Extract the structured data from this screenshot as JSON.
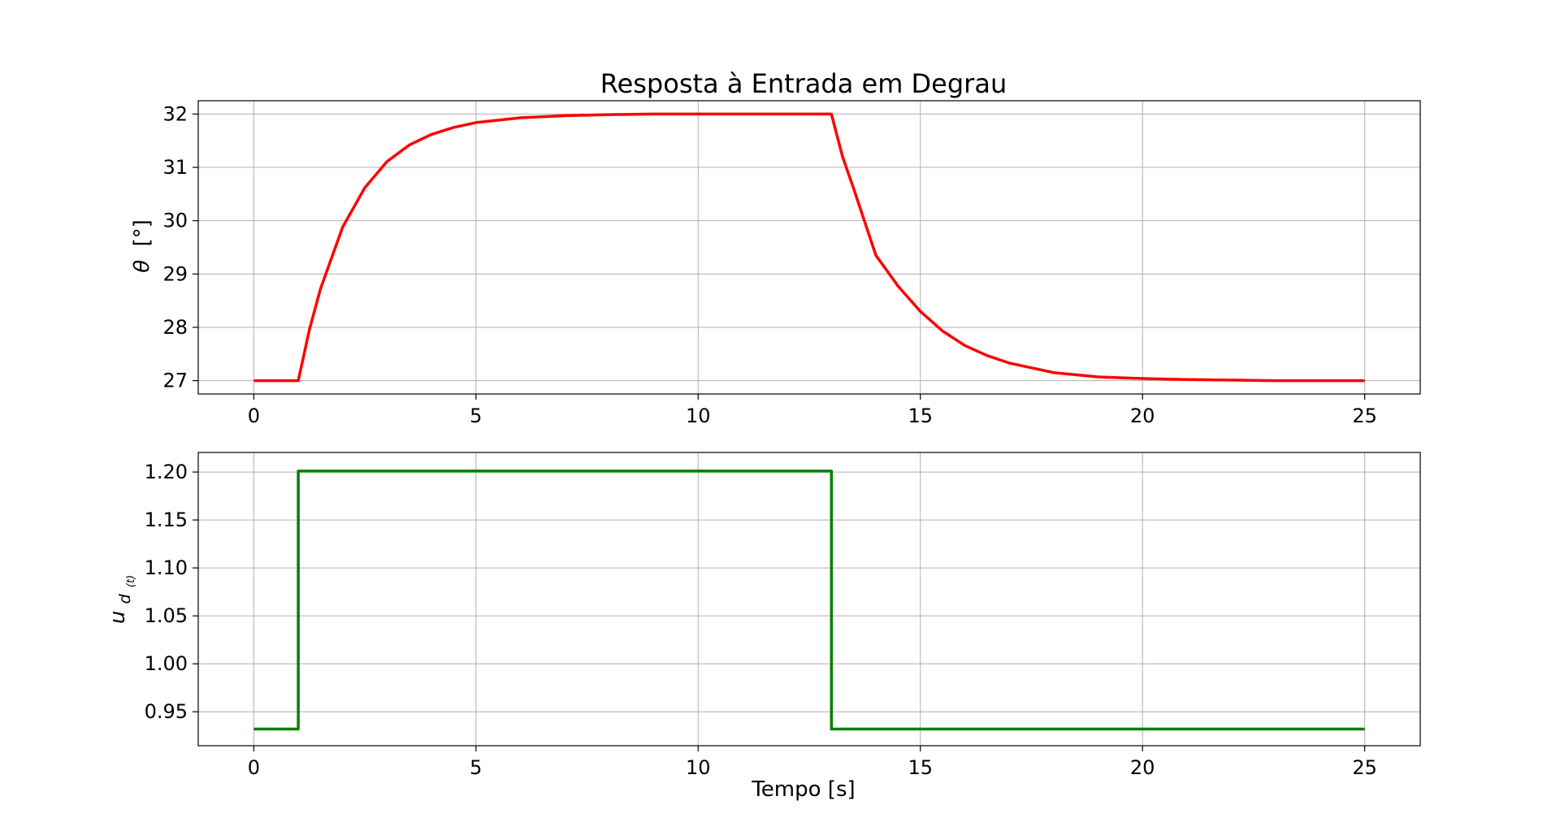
{
  "chart_data": {
    "title": "Resposta à Entrada em Degrau",
    "subplots": [
      {
        "type": "line",
        "ylabel_symbol": "θ",
        "ylabel_unit": "[°]",
        "xlabel": "",
        "xlim": [
          -1.25,
          26.25
        ],
        "ylim": [
          26.75,
          32.25
        ],
        "xticks": [
          0,
          5,
          10,
          15,
          20,
          25
        ],
        "xtick_labels": [
          "0",
          "5",
          "10",
          "15",
          "20",
          "25"
        ],
        "yticks": [
          27,
          28,
          29,
          30,
          31,
          32
        ],
        "ytick_labels": [
          "27",
          "28",
          "29",
          "30",
          "31",
          "32"
        ],
        "grid": true,
        "series": [
          {
            "color": "#ff0000",
            "x": [
              0,
              0.5,
              1,
              1.25,
              1.5,
              2,
              2.5,
              3,
              3.5,
              4,
              4.5,
              5,
              6,
              7,
              8,
              9,
              10,
              11,
              12,
              13,
              13.25,
              13.5,
              14,
              14.5,
              15,
              15.5,
              16,
              16.5,
              17,
              18,
              19,
              20,
              21,
              22,
              23,
              24,
              25
            ],
            "y": [
              27,
              27,
              27,
              27.95,
              28.72,
              29.88,
              30.62,
              31.11,
              31.42,
              31.62,
              31.75,
              31.84,
              31.93,
              31.97,
              31.99,
              32.0,
              32.0,
              32.0,
              32.0,
              32.0,
              31.2,
              30.6,
              29.35,
              28.77,
              28.3,
              27.93,
              27.66,
              27.47,
              27.33,
              27.15,
              27.07,
              27.04,
              27.02,
              27.01,
              27.0,
              27.0,
              27.0
            ]
          }
        ]
      },
      {
        "type": "line",
        "ylabel_symbol": "u",
        "ylabel_sub": "d",
        "ylabel_subsub": "(t)",
        "xlabel": "Tempo [s]",
        "xlim": [
          -1.25,
          26.25
        ],
        "ylim": [
          0.9146,
          1.2204
        ],
        "xticks": [
          0,
          5,
          10,
          15,
          20,
          25
        ],
        "xtick_labels": [
          "0",
          "5",
          "10",
          "15",
          "20",
          "25"
        ],
        "yticks": [
          0.95,
          1.0,
          1.05,
          1.1,
          1.15,
          1.2
        ],
        "ytick_labels": [
          "0.95",
          "1.00",
          "1.05",
          "1.10",
          "1.15",
          "1.20"
        ],
        "grid": true,
        "series": [
          {
            "color": "#008000",
            "x": [
              0,
              1,
              1,
              13,
              13,
              25
            ],
            "y": [
              0.932,
              0.932,
              1.201,
              1.201,
              0.932,
              0.932
            ]
          }
        ]
      }
    ]
  }
}
